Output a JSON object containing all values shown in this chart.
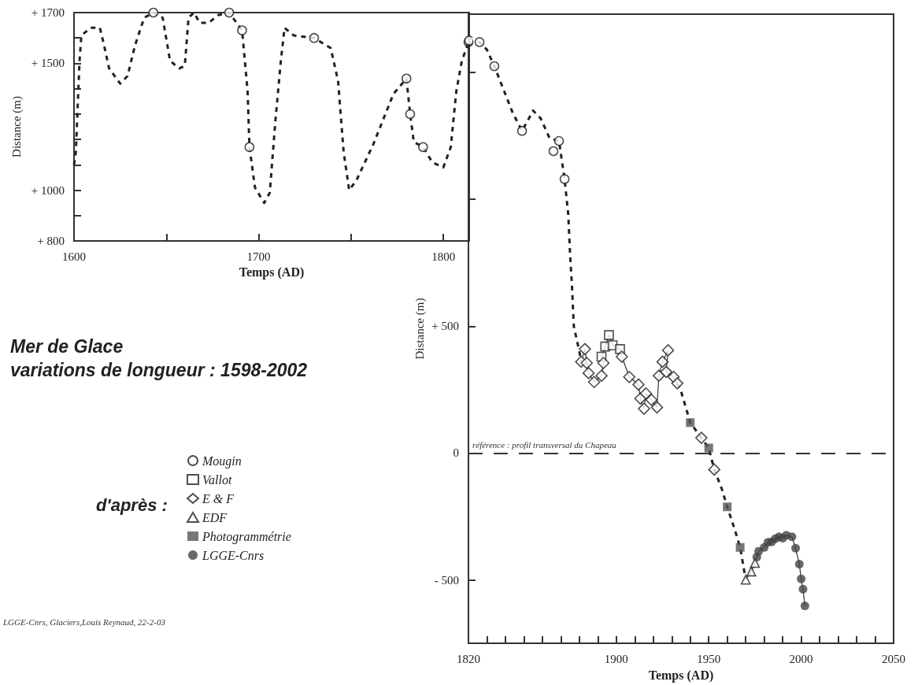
{
  "chart_data": [
    {
      "type": "line",
      "title": "Mer de Glace\nvariations de longueur : 1598-2002",
      "xlabel": "Temps (AD)",
      "ylabel": "Distance (m)",
      "xlim": [
        1600,
        1814
      ],
      "xticks": [
        1600,
        {
          "value": 1650,
          "label": null
        },
        1700,
        {
          "value": 1750,
          "label": null
        },
        1800
      ],
      "ylim": [
        800,
        1700
      ],
      "yticks": [
        {
          "value": 800,
          "label": "+ 800"
        },
        {
          "value": 900,
          "label": null
        },
        {
          "value": 1000,
          "label": "+ 1000"
        },
        {
          "value": 1100,
          "label": null
        },
        {
          "value": 1200,
          "label": null
        },
        {
          "value": 1300,
          "label": null
        },
        {
          "value": 1400,
          "label": null
        },
        {
          "value": 1500,
          "label": "+ 1500"
        },
        {
          "value": 1600,
          "label": null
        },
        {
          "value": 1700,
          "label": "+ 1700"
        }
      ],
      "series": [
        {
          "line_style": "dashed",
          "marker": "none",
          "color": "#222222",
          "x": [
            1600,
            1601,
            1603,
            1604,
            1609,
            1614,
            1616,
            1619,
            1625,
            1629,
            1633,
            1638,
            1643,
            1648,
            1652,
            1657,
            1660,
            1662,
            1665,
            1668,
            1673,
            1678,
            1684,
            1691,
            1694,
            1695,
            1698,
            1703,
            1706,
            1709,
            1712,
            1714,
            1719,
            1730,
            1739,
            1743,
            1746,
            1749,
            1753,
            1762,
            1773,
            1780,
            1782,
            1784,
            1789,
            1794,
            1800,
            1804,
            1807,
            1810,
            1814
          ],
          "values": [
            1100,
            1150,
            1510,
            1610,
            1640,
            1640,
            1580,
            1480,
            1420,
            1450,
            1570,
            1680,
            1700,
            1680,
            1510,
            1480,
            1490,
            1680,
            1700,
            1660,
            1660,
            1690,
            1700,
            1630,
            1390,
            1170,
            1010,
            950,
            990,
            1270,
            1510,
            1640,
            1610,
            1600,
            1560,
            1430,
            1150,
            1000,
            1040,
            1180,
            1380,
            1440,
            1300,
            1190,
            1170,
            1110,
            1090,
            1170,
            1390,
            1510,
            1590
          ]
        },
        {
          "type": "scatter",
          "marker": "circle",
          "color": "#ffffff",
          "x": [
            1643,
            1684,
            1691,
            1695,
            1730,
            1780,
            1782,
            1789,
            1814
          ],
          "values": [
            1700,
            1700,
            1630,
            1170,
            1600,
            1440,
            1300,
            1170,
            1590
          ]
        }
      ]
    },
    {
      "type": "line",
      "xlabel": "Temps (AD)",
      "ylabel": "Distance (m)",
      "xlim": [
        1820,
        2050
      ],
      "xticks": [
        1820,
        {
          "value": 1830,
          "label": null
        },
        {
          "value": 1840,
          "label": null
        },
        {
          "value": 1850,
          "label": null
        },
        {
          "value": 1860,
          "label": null
        },
        {
          "value": 1870,
          "label": null
        },
        {
          "value": 1880,
          "label": null
        },
        {
          "value": 1890,
          "label": null
        },
        1900,
        {
          "value": 1910,
          "label": null
        },
        {
          "value": 1920,
          "label": null
        },
        {
          "value": 1930,
          "label": null
        },
        {
          "value": 1940,
          "label": null
        },
        1950,
        {
          "value": 1960,
          "label": null
        },
        {
          "value": 1970,
          "label": null
        },
        {
          "value": 1980,
          "label": null
        },
        {
          "value": 1990,
          "label": null
        },
        2000,
        {
          "value": 2010,
          "label": null
        },
        {
          "value": 2020,
          "label": null
        },
        {
          "value": 2030,
          "label": null
        },
        {
          "value": 2040,
          "label": null
        },
        2050
      ],
      "ylim": [
        -750,
        1730
      ],
      "yticks": [
        {
          "value": -500,
          "label": "- 500"
        },
        0,
        {
          "value": 500,
          "label": "+ 500"
        },
        {
          "value": 1000,
          "label": null
        },
        {
          "value": 1500,
          "label": null
        }
      ],
      "legend": "left",
      "legend_title": "d'après :",
      "annotations": [
        "LGGE-Cnrs, Glaciers,Louis Reynaud, 22-2-03"
      ],
      "ref_lines": [
        {
          "axis": "y",
          "value": 0,
          "label": "référence : profil transversal du Chapeau",
          "line_style": "dashed",
          "color": "#333333"
        }
      ],
      "series": [
        {
          "line_style": "dashed",
          "marker": "none",
          "color": "#222222",
          "x": [
            1820,
            1826,
            1830,
            1834,
            1844,
            1849,
            1855,
            1859,
            1864,
            1869,
            1872,
            1874,
            1875,
            1876,
            1877,
            1880,
            1881,
            1900,
            1933,
            1935,
            1938,
            1940,
            1946,
            1950,
            1953,
            1957,
            1960,
            1964,
            1967,
            1970
          ],
          "values": [
            1620,
            1620,
            1590,
            1525,
            1340,
            1270,
            1350,
            1320,
            1240,
            1230,
            1080,
            940,
            780,
            660,
            500,
            400,
            360,
            null,
            275,
            244,
            170,
            120,
            60,
            20,
            -65,
            -140,
            -212,
            -300,
            -372,
            -499
          ]
        },
        {
          "line_style": "solid",
          "marker": "none",
          "color": "#333333",
          "x": [
            1881,
            1883,
            1884,
            1885,
            1888,
            1892,
            1893,
            1892,
            1894,
            1896,
            1898,
            1902,
            1903,
            1907,
            1912,
            1913,
            1915,
            1916,
            1919,
            1922,
            1923,
            1925,
            1928,
            1927,
            1931,
            1933,
            1950,
            1970,
            1973,
            1975,
            1976,
            1977,
            1980,
            1982,
            1984,
            1986,
            1988,
            1990,
            1992,
            1995,
            1997,
            1999,
            2000,
            2001,
            2002
          ],
          "values": [
            360,
            410,
            355,
            315,
            280,
            305,
            355,
            380,
            420,
            465,
            425,
            410,
            380,
            300,
            270,
            215,
            175,
            235,
            210,
            180,
            305,
            360,
            405,
            320,
            300,
            275,
            null,
            -499,
            -467,
            -433,
            -410,
            -387,
            -372,
            -352,
            -350,
            -338,
            -330,
            -335,
            -324,
            -330,
            -375,
            -438,
            -496,
            -536,
            -602
          ]
        },
        {
          "type": "scatter",
          "name": "Mougin",
          "marker": "circle",
          "color": "#ffffff",
          "x": [
            1820,
            1826,
            1834,
            1849,
            1866,
            1869,
            1872
          ],
          "values": [
            1620,
            1620,
            1525,
            1270,
            1190,
            1230,
            1080
          ]
        },
        {
          "type": "scatter",
          "name": "Vallot",
          "marker": "square",
          "color": "#ffffff",
          "x": [
            1892,
            1894,
            1896,
            1898,
            1902
          ],
          "values": [
            380,
            420,
            465,
            425,
            410
          ]
        },
        {
          "type": "scatter",
          "name": "E & F",
          "marker": "diamond",
          "color": "#ffffff",
          "x": [
            1881,
            1883,
            1884,
            1885,
            1888,
            1892,
            1893,
            1903,
            1907,
            1912,
            1913,
            1915,
            1916,
            1919,
            1922,
            1923,
            1925,
            1927,
            1928,
            1931,
            1933,
            1946,
            1953
          ],
          "values": [
            360,
            410,
            355,
            315,
            280,
            305,
            355,
            380,
            300,
            270,
            215,
            175,
            235,
            210,
            180,
            305,
            360,
            320,
            405,
            300,
            275,
            60,
            -65
          ]
        },
        {
          "type": "scatter",
          "name": "EDF",
          "marker": "triangle",
          "color": "#ffffff",
          "x": [
            1970,
            1973,
            1975
          ],
          "values": [
            -499,
            -467,
            -433
          ]
        },
        {
          "type": "scatter",
          "name": "Photogrammétrie",
          "marker": "square",
          "color": "#555555",
          "x": [
            1940,
            1950,
            1960,
            1967
          ],
          "values": [
            120,
            20,
            -212,
            -372
          ]
        },
        {
          "type": "scatter",
          "name": "LGGE-Cnrs",
          "marker": "circle",
          "color": "#444444",
          "x": [
            1976,
            1977,
            1980,
            1982,
            1984,
            1986,
            1988,
            1990,
            1992,
            1995,
            1997,
            1999,
            2000,
            2001,
            2002
          ],
          "values": [
            -410,
            -387,
            -372,
            -352,
            -350,
            -338,
            -330,
            -335,
            -324,
            -330,
            -375,
            -438,
            -496,
            -536,
            -602
          ]
        }
      ]
    }
  ]
}
